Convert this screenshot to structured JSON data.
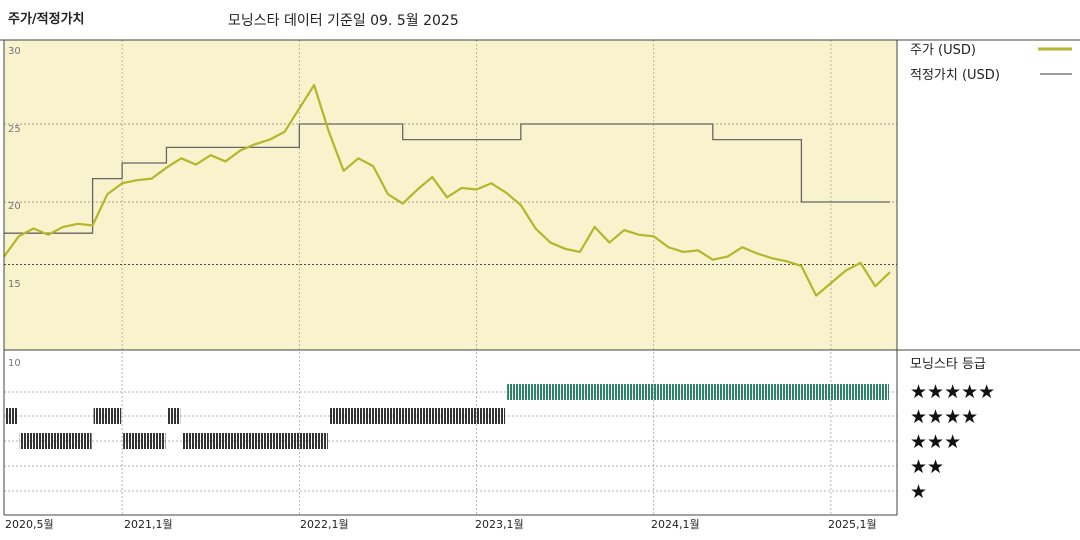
{
  "header": {
    "title": "주가/적정가치",
    "subtitle": "모닝스타 데이터 기준일 09. 5월 2025"
  },
  "colors": {
    "price": "#b4b62c",
    "fair": "#666666",
    "plot_bg": "#f8f3cc",
    "rating_bar": "#2e8268",
    "rating_bar_old": "#333333"
  },
  "legend": {
    "price_label": "주가 (USD)",
    "fair_label": "적정가치 (USD)",
    "rating_title": "모닝스타 등급",
    "stars": [
      "★★★★★",
      "★★★★",
      "★★★",
      "★★",
      "★"
    ]
  },
  "chart_data": {
    "type": "line",
    "title": "주가/적정가치",
    "x_range": [
      "2020-05",
      "2025-05"
    ],
    "x_tick_labels": [
      "2020,5월",
      "2021,1월",
      "2022,1월",
      "2023,1월",
      "2024,1월",
      "2025,1월"
    ],
    "y_tick_labels": [
      "30",
      "25",
      "20",
      "15",
      "10"
    ],
    "ylim": [
      10,
      30
    ],
    "grid": true,
    "series": [
      {
        "name": "주가 (USD)",
        "x": [
          "2020-05",
          "2020-06",
          "2020-07",
          "2020-08",
          "2020-09",
          "2020-10",
          "2020-11",
          "2020-12",
          "2021-01",
          "2021-02",
          "2021-03",
          "2021-04",
          "2021-05",
          "2021-06",
          "2021-07",
          "2021-08",
          "2021-09",
          "2021-10",
          "2021-11",
          "2021-12",
          "2022-01",
          "2022-02",
          "2022-03",
          "2022-04",
          "2022-05",
          "2022-06",
          "2022-07",
          "2022-08",
          "2022-09",
          "2022-10",
          "2022-11",
          "2022-12",
          "2023-01",
          "2023-02",
          "2023-03",
          "2023-04",
          "2023-05",
          "2023-06",
          "2023-07",
          "2023-08",
          "2023-09",
          "2023-10",
          "2023-11",
          "2023-12",
          "2024-01",
          "2024-02",
          "2024-03",
          "2024-04",
          "2024-05",
          "2024-06",
          "2024-07",
          "2024-08",
          "2024-09",
          "2024-10",
          "2024-11",
          "2024-12",
          "2025-01",
          "2025-02",
          "2025-03",
          "2025-04",
          "2025-05"
        ],
        "values": [
          16.5,
          17.8,
          18.3,
          17.9,
          18.4,
          18.6,
          18.5,
          20.5,
          21.2,
          21.4,
          21.5,
          22.2,
          22.8,
          22.4,
          23.0,
          22.6,
          23.3,
          23.7,
          24.0,
          24.5,
          26.0,
          27.5,
          24.5,
          22.0,
          22.8,
          22.3,
          20.5,
          19.9,
          20.8,
          21.6,
          20.3,
          20.9,
          20.8,
          21.2,
          20.6,
          19.8,
          18.3,
          17.4,
          17.0,
          16.8,
          18.4,
          17.4,
          18.2,
          17.9,
          17.8,
          17.1,
          16.8,
          16.9,
          16.3,
          16.5,
          17.1,
          16.7,
          16.4,
          16.2,
          15.9,
          14.0,
          14.8,
          15.6,
          16.1,
          14.6,
          15.5
        ]
      },
      {
        "name": "적정가치 (USD)",
        "x": [
          "2020-05",
          "2020-10",
          "2020-11",
          "2021-01",
          "2021-04",
          "2022-01",
          "2022-03",
          "2022-08",
          "2023-01",
          "2023-04",
          "2024-05",
          "2024-11",
          "2025-05"
        ],
        "values": [
          18.0,
          18.0,
          21.5,
          22.5,
          23.5,
          25.0,
          25.0,
          24.0,
          24.0,
          25.0,
          24.0,
          20.0,
          20.0
        ]
      }
    ],
    "rating_history": [
      {
        "from": "2020-05",
        "to": "2020-06",
        "stars": 4
      },
      {
        "from": "2020-06",
        "to": "2020-11",
        "stars": 3
      },
      {
        "from": "2020-11",
        "to": "2021-01",
        "stars": 4
      },
      {
        "from": "2021-01",
        "to": "2021-04",
        "stars": 3
      },
      {
        "from": "2021-04",
        "to": "2021-05",
        "stars": 4
      },
      {
        "from": "2021-05",
        "to": "2022-03",
        "stars": 3
      },
      {
        "from": "2022-03",
        "to": "2023-03",
        "stars": 4
      },
      {
        "from": "2023-03",
        "to": "2025-05",
        "stars": 5
      }
    ]
  }
}
